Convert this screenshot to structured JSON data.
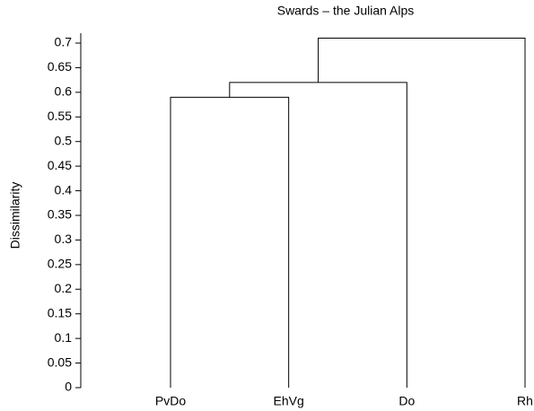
{
  "chart_data": {
    "type": "dendrogram",
    "title": "Swards – the Julian Alps",
    "y_label": "Dissimilarity",
    "categories": [
      "PvDo",
      "EhVg",
      "Do",
      "Rh"
    ],
    "merges": [
      {
        "items": [
          0,
          1
        ],
        "height": 0.59
      },
      {
        "items": [
          4,
          2
        ],
        "height": 0.62
      },
      {
        "items": [
          5,
          3
        ],
        "height": 0.71
      }
    ],
    "ylim": [
      0,
      0.72
    ],
    "yticks": [
      0,
      0.05,
      0.1,
      0.15,
      0.2,
      0.25,
      0.3,
      0.35,
      0.4,
      0.45,
      0.5,
      0.55,
      0.6,
      0.65,
      0.7
    ],
    "color": "#000000"
  }
}
